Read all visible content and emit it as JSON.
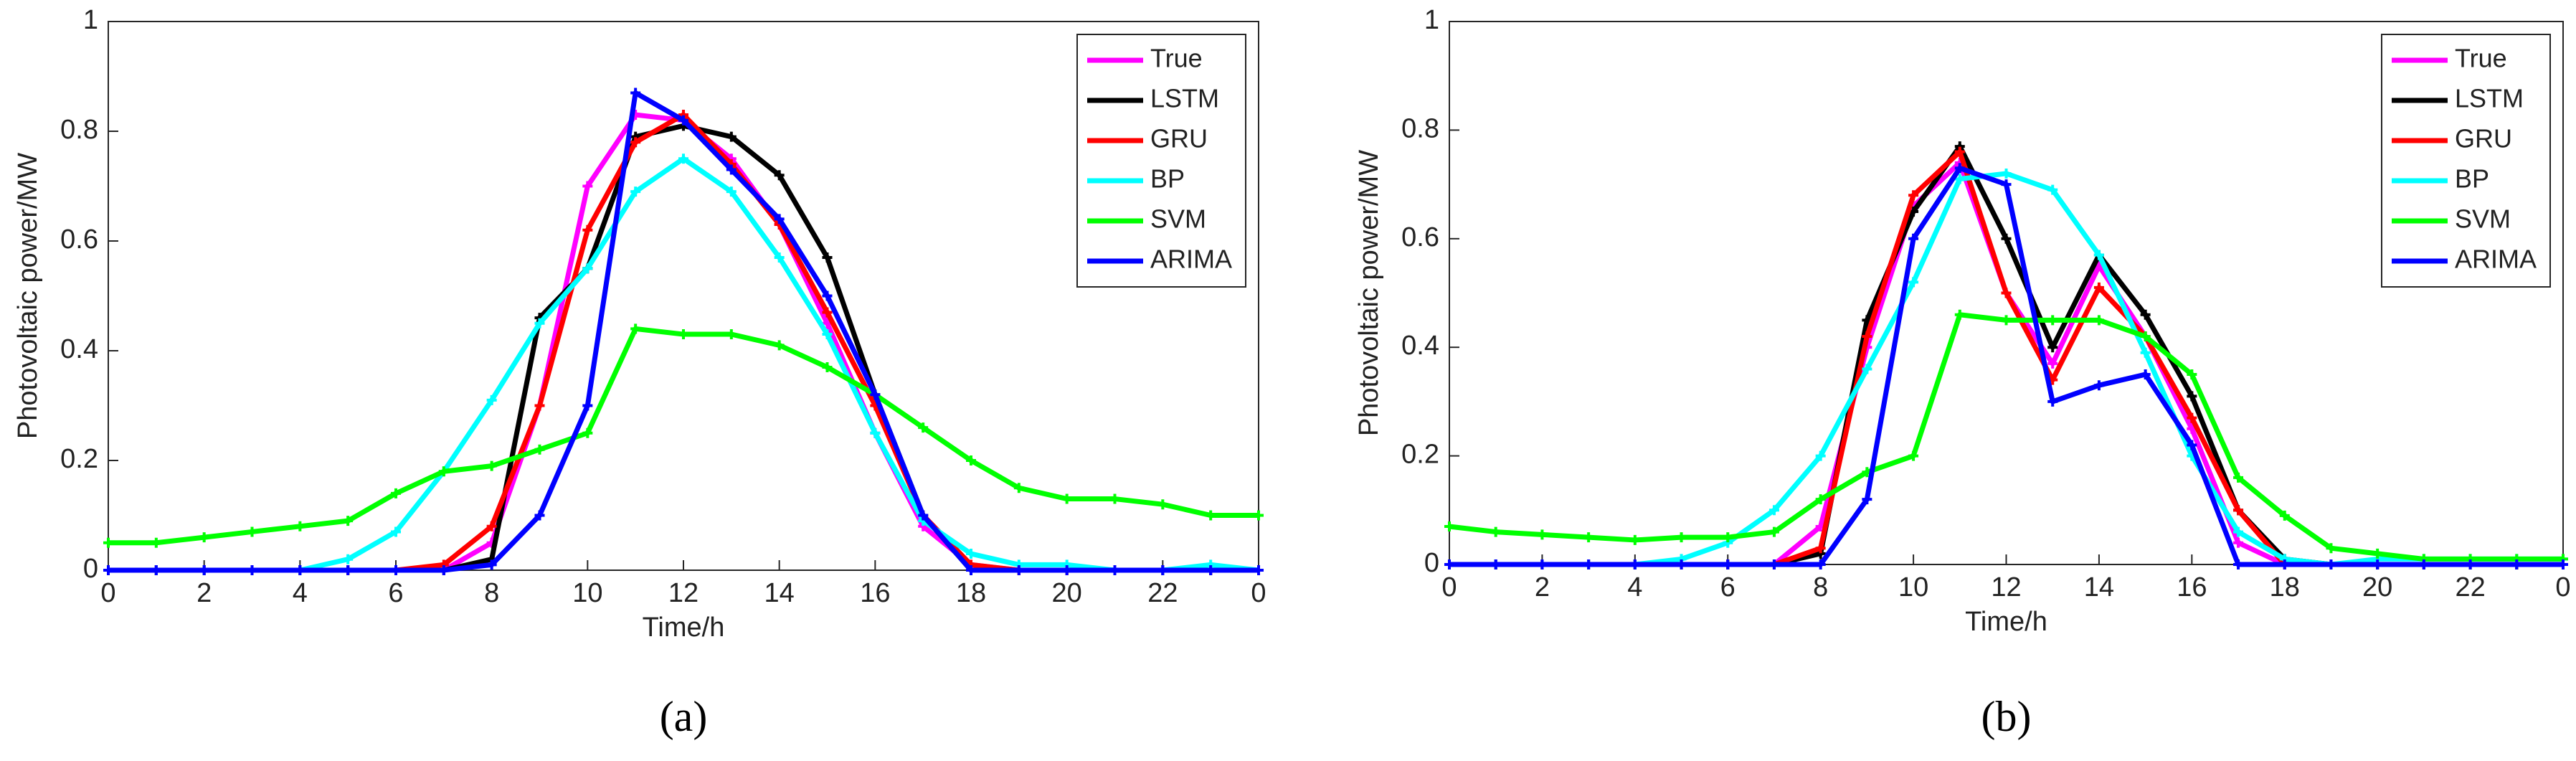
{
  "chart_data": [
    {
      "type": "line",
      "caption": "(a)",
      "x_label": "Time/h",
      "y_label": "Photovoltaic power/MW",
      "x": [
        0,
        1,
        2,
        3,
        4,
        5,
        6,
        7,
        8,
        9,
        10,
        11,
        12,
        13,
        14,
        15,
        16,
        17,
        18,
        19,
        20,
        21,
        22,
        23,
        24
      ],
      "xlim": [
        0,
        24
      ],
      "xticks": [
        0,
        2,
        4,
        6,
        8,
        10,
        12,
        14,
        16,
        18,
        20,
        22,
        {
          "value": 24,
          "label": "0"
        }
      ],
      "ylim": [
        0,
        1
      ],
      "yticks": [
        0,
        0.2,
        0.4,
        0.6,
        0.8,
        1
      ],
      "legend": "upper right",
      "series": [
        {
          "name": "True",
          "color": "#ff00ff",
          "values": [
            0,
            0,
            0,
            0,
            0,
            0,
            0,
            0,
            0.05,
            0.3,
            0.7,
            0.83,
            0.82,
            0.75,
            0.63,
            0.45,
            0.25,
            0.08,
            0.01,
            0,
            0,
            0,
            0,
            0,
            0
          ]
        },
        {
          "name": "LSTM",
          "color": "#000000",
          "values": [
            0,
            0,
            0,
            0,
            0,
            0,
            0,
            0,
            0.02,
            0.46,
            0.55,
            0.79,
            0.81,
            0.79,
            0.72,
            0.57,
            0.32,
            0.1,
            0,
            0,
            0,
            0,
            0,
            0,
            0
          ]
        },
        {
          "name": "GRU",
          "color": "#ff0000",
          "values": [
            0,
            0,
            0,
            0,
            0,
            0,
            0,
            0.01,
            0.08,
            0.3,
            0.62,
            0.78,
            0.83,
            0.74,
            0.63,
            0.47,
            0.3,
            0.1,
            0.01,
            0,
            0,
            0,
            0,
            0,
            0
          ]
        },
        {
          "name": "BP",
          "color": "#00ffff",
          "values": [
            0,
            0,
            0,
            0,
            0,
            0.02,
            0.07,
            0.18,
            0.31,
            0.45,
            0.55,
            0.69,
            0.75,
            0.69,
            0.57,
            0.43,
            0.25,
            0.09,
            0.03,
            0.01,
            0.01,
            0,
            0,
            0.01,
            0
          ]
        },
        {
          "name": "SVM",
          "color": "#00ff00",
          "values": [
            0.05,
            0.05,
            0.06,
            0.07,
            0.08,
            0.09,
            0.14,
            0.18,
            0.19,
            0.22,
            0.25,
            0.44,
            0.43,
            0.43,
            0.41,
            0.37,
            0.32,
            0.26,
            0.2,
            0.15,
            0.13,
            0.13,
            0.12,
            0.1,
            0.1
          ]
        },
        {
          "name": "ARIMA",
          "color": "#0000ff",
          "values": [
            0,
            0,
            0,
            0,
            0,
            0,
            0,
            0,
            0.01,
            0.1,
            0.3,
            0.87,
            0.82,
            0.73,
            0.64,
            0.5,
            0.32,
            0.1,
            0,
            0,
            0,
            0,
            0,
            0,
            0
          ]
        }
      ]
    },
    {
      "type": "line",
      "caption": "(b)",
      "x_label": "Time/h",
      "y_label": "Photovoltaic power/MW",
      "x": [
        0,
        1,
        2,
        3,
        4,
        5,
        6,
        7,
        8,
        9,
        10,
        11,
        12,
        13,
        14,
        15,
        16,
        17,
        18,
        19,
        20,
        21,
        22,
        23,
        24
      ],
      "xlim": [
        0,
        24
      ],
      "xticks": [
        0,
        2,
        4,
        6,
        8,
        10,
        12,
        14,
        16,
        18,
        20,
        22,
        {
          "value": 24,
          "label": "0"
        }
      ],
      "ylim": [
        0,
        1
      ],
      "yticks": [
        0,
        0.2,
        0.4,
        0.6,
        0.8,
        1
      ],
      "legend": "upper right",
      "series": [
        {
          "name": "True",
          "color": "#ff00ff",
          "values": [
            0,
            0,
            0,
            0,
            0,
            0,
            0,
            0,
            0.07,
            0.4,
            0.66,
            0.74,
            0.5,
            0.37,
            0.55,
            0.42,
            0.25,
            0.04,
            0,
            0,
            0,
            0,
            0,
            0,
            0
          ]
        },
        {
          "name": "LSTM",
          "color": "#000000",
          "values": [
            0,
            0,
            0,
            0,
            0,
            0,
            0,
            0,
            0.02,
            0.45,
            0.65,
            0.77,
            0.6,
            0.4,
            0.57,
            0.46,
            0.31,
            0.1,
            0.01,
            0,
            0,
            0,
            0,
            0,
            0
          ]
        },
        {
          "name": "GRU",
          "color": "#ff0000",
          "values": [
            0,
            0,
            0,
            0,
            0,
            0,
            0,
            0,
            0.03,
            0.42,
            0.68,
            0.76,
            0.5,
            0.34,
            0.51,
            0.42,
            0.27,
            0.1,
            0,
            0,
            0,
            0,
            0,
            0,
            0
          ]
        },
        {
          "name": "BP",
          "color": "#00ffff",
          "values": [
            0,
            0,
            0,
            0,
            0,
            0.01,
            0.04,
            0.1,
            0.2,
            0.36,
            0.52,
            0.71,
            0.72,
            0.69,
            0.57,
            0.39,
            0.2,
            0.06,
            0.01,
            0,
            0.01,
            0.01,
            0.01,
            0.01,
            0.01
          ]
        },
        {
          "name": "SVM",
          "color": "#00ff00",
          "values": [
            0.07,
            0.06,
            0.055,
            0.05,
            0.045,
            0.05,
            0.05,
            0.06,
            0.12,
            0.17,
            0.2,
            0.46,
            0.45,
            0.45,
            0.45,
            0.42,
            0.35,
            0.16,
            0.09,
            0.03,
            0.02,
            0.01,
            0.01,
            0.01,
            0.01
          ]
        },
        {
          "name": "ARIMA",
          "color": "#0000ff",
          "values": [
            0,
            0,
            0,
            0,
            0,
            0,
            0,
            0,
            0,
            0.12,
            0.6,
            0.73,
            0.7,
            0.3,
            0.33,
            0.35,
            0.22,
            0,
            0,
            0,
            0,
            0,
            0,
            0,
            0
          ]
        }
      ]
    }
  ]
}
